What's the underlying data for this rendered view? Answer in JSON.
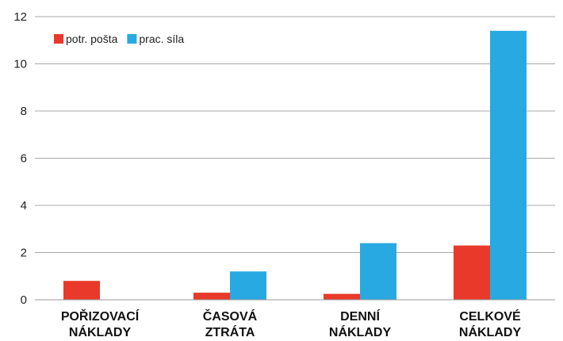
{
  "chart_data": {
    "type": "bar",
    "categories": [
      [
        "POŘIZOVACÍ",
        "NÁKLADY"
      ],
      [
        "ČASOVÁ",
        "ZTRÁTA"
      ],
      [
        "DENNÍ",
        "NÁKLADY"
      ],
      [
        "CELKOVÉ",
        "NÁKLADY"
      ]
    ],
    "series": [
      {
        "name": "potr. pošta",
        "color": "#e8392a",
        "values": [
          0.8,
          0.3,
          0.25,
          2.3
        ]
      },
      {
        "name": "prac. síla",
        "color": "#29a9e1",
        "values": [
          0,
          1.2,
          2.4,
          11.4
        ]
      }
    ],
    "ylim": [
      0,
      12
    ],
    "yticks": [
      0,
      2,
      4,
      6,
      8,
      10,
      12
    ],
    "grid": true,
    "legend": "top-left",
    "title": "",
    "xlabel": "",
    "ylabel": ""
  }
}
